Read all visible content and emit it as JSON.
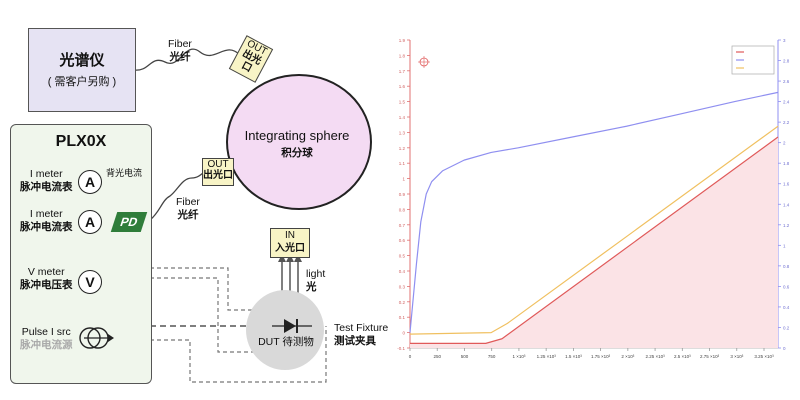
{
  "spectrometer": {
    "title": "光谱仪",
    "subtitle": "( 需客户另购 )"
  },
  "fiber_top": {
    "en": "Fiber",
    "cn": "光纤"
  },
  "fiber_mid": {
    "en": "Fiber",
    "cn": "光纤"
  },
  "sphere": {
    "en": "Integrating sphere",
    "cn": "积分球"
  },
  "port_out_top": {
    "en": "OUT",
    "cn": "出光口"
  },
  "port_out_left": {
    "en": "OUT",
    "cn": "出光口"
  },
  "port_in": {
    "en": "IN",
    "cn": "入光口"
  },
  "light": {
    "en": "light",
    "cn": "光"
  },
  "dut": {
    "label": "DUT 待测物"
  },
  "fixture": {
    "en": "Test Fixture",
    "cn": "测试夹具"
  },
  "plx": {
    "title": "PLX0X",
    "imeter1": {
      "en": "I meter",
      "cn": "脉冲电流表",
      "symbol": "A",
      "note": "背光电流"
    },
    "imeter2": {
      "en": "I meter",
      "cn": "脉冲电流表",
      "symbol": "A",
      "pd": "PD"
    },
    "vmeter": {
      "en": "V meter",
      "cn": "脉冲电压表",
      "symbol": "V"
    },
    "source": {
      "en": "Pulse I src",
      "cn": "脉冲电流源"
    }
  },
  "colors": {
    "sphere": "#f4dbf3",
    "pd": "#2f7d3a",
    "series_red": "#e05a5a",
    "series_blue": "#8f8ff0",
    "series_orange": "#f0c060",
    "red_fill": "#fbe3e6"
  },
  "chart_data": {
    "type": "line",
    "x_ticks": [
      "0",
      "250",
      "500",
      "750",
      "1 ×10³",
      "1.25 ×10³",
      "1.5 ×10³",
      "1.75 ×10³",
      "2 ×10³",
      "2.25 ×10³",
      "2.5 ×10³",
      "2.75 ×10³",
      "3 ×10³",
      "3.25 ×10³"
    ],
    "left_ticks": [
      "-0.1",
      "0",
      "0.1",
      "0.2",
      "0.3",
      "0.4",
      "0.5",
      "0.6",
      "0.7",
      "0.8",
      "0.9",
      "1",
      "1.1",
      "1.2",
      "1.3",
      "1.4",
      "1.5",
      "1.6",
      "1.7",
      "1.8",
      "1.9"
    ],
    "right_ticks": [
      "0",
      "0.2",
      "0.4",
      "0.6",
      "0.8",
      "1",
      "1.2",
      "1.4",
      "1.6",
      "1.8",
      "2",
      "2.2",
      "2.4",
      "2.6",
      "2.8",
      "3"
    ],
    "xlim": [
      0,
      3400
    ],
    "ylim_left": [
      -0.1,
      1.9
    ],
    "series": [
      {
        "color": "#e05a5a",
        "fill": true,
        "x": [
          0,
          700,
          850,
          3400
        ],
        "y": [
          -0.07,
          -0.07,
          -0.04,
          1.27
        ]
      },
      {
        "color": "#8f8ff0",
        "x": [
          0,
          60,
          100,
          150,
          200,
          300,
          500,
          750,
          1000,
          1500,
          2000,
          2500,
          3000,
          3400
        ],
        "y": [
          0,
          0.45,
          0.72,
          0.9,
          0.98,
          1.05,
          1.12,
          1.17,
          1.2,
          1.27,
          1.34,
          1.42,
          1.5,
          1.56
        ]
      },
      {
        "color": "#f0c060",
        "x": [
          0,
          750,
          900,
          3400
        ],
        "y": [
          -0.01,
          0,
          0.06,
          1.34
        ]
      }
    ],
    "legend_position": "top-right",
    "grid": false
  }
}
